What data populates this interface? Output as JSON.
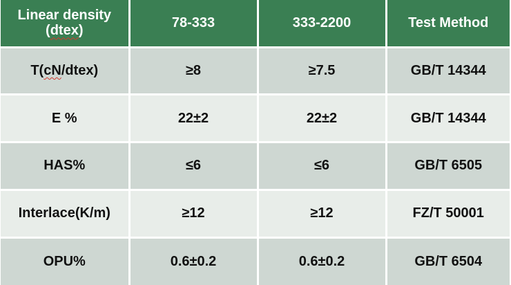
{
  "table": {
    "header": {
      "col1_line1": "Linear density",
      "col1_open": "(",
      "col1_unit": "dtex",
      "col1_close": ")",
      "col2": "78-333",
      "col3": "333-2200",
      "col4": "Test Method"
    },
    "rows": [
      {
        "prop_prefix": "T(",
        "prop_unit": "cN",
        "prop_suffix": "/dtex)",
        "v1": "≥8",
        "v2": "≥7.5",
        "method": "GB/T 14344"
      },
      {
        "prop": "E %",
        "v1": "22±2",
        "v2": "22±2",
        "method": "GB/T 14344"
      },
      {
        "prop": "HAS%",
        "v1": "≤6",
        "v2": "≤6",
        "method": "GB/T 6505"
      },
      {
        "prop": "Interlace(K/m)",
        "v1": "≥12",
        "v2": "≥12",
        "method": "FZ/T 50001"
      },
      {
        "prop": "OPU%",
        "v1": "0.6±0.2",
        "v2": "0.6±0.2",
        "method": "GB/T 6504"
      }
    ]
  }
}
